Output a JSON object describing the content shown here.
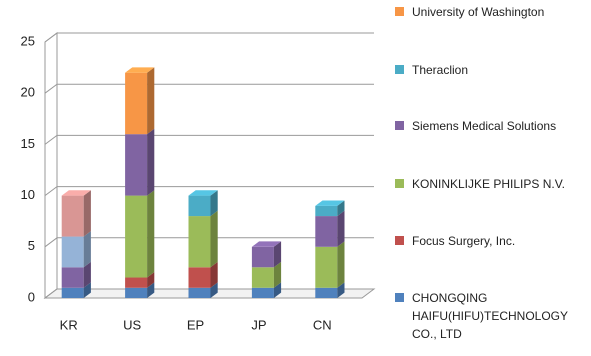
{
  "chart_data": {
    "type": "bar3d_stacked",
    "categories": [
      "KR",
      "US",
      "EP",
      "JP",
      "CN"
    ],
    "series": [
      {
        "name": "CHONGQING HAIFU(HIFU)TECHNOLOGY CO., LTD",
        "color": "#4f81bd",
        "values": [
          1,
          1,
          1,
          1,
          1
        ]
      },
      {
        "name": "Focus Surgery, Inc.",
        "color": "#c0504d",
        "values": [
          0,
          1,
          2,
          0,
          0
        ]
      },
      {
        "name": "KONINKLIJKE PHILIPS N.V.",
        "color": "#9bbb59",
        "values": [
          0,
          8,
          5,
          2,
          4
        ]
      },
      {
        "name": "Siemens Medical Solutions",
        "color": "#8064a2",
        "values": [
          2,
          6,
          0,
          2,
          3
        ]
      },
      {
        "name": "Theraclion",
        "color": "#4bacc6",
        "values": [
          0,
          0,
          2,
          0,
          1
        ]
      },
      {
        "name": "University of Washington",
        "color": "#f79646",
        "values": [
          0,
          6,
          0,
          0,
          0
        ]
      },
      {
        "color": "#95b3d7",
        "values": [
          3,
          0,
          0,
          0,
          0
        ]
      },
      {
        "color": "#d99694",
        "values": [
          4,
          0,
          0,
          0,
          0
        ]
      }
    ],
    "ylim": [
      0,
      25
    ],
    "yticks": [
      0,
      5,
      10,
      15,
      20,
      25
    ],
    "grid": true
  }
}
